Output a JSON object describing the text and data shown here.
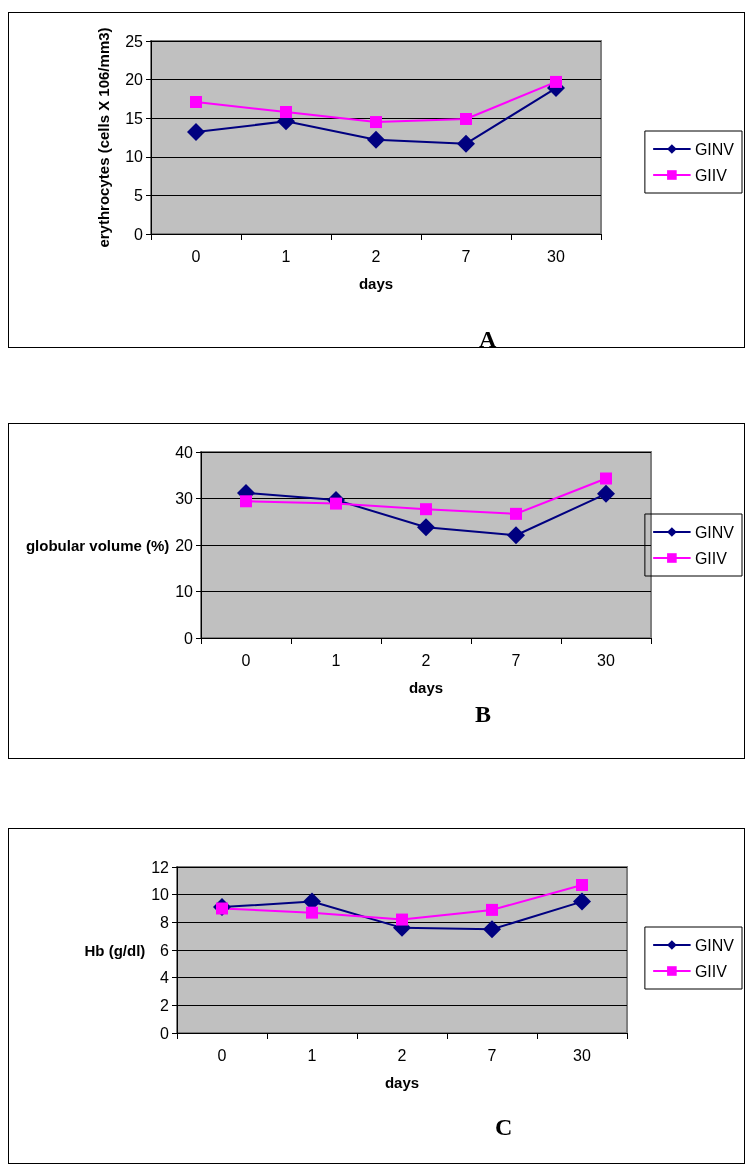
{
  "chart_data": [
    {
      "type": "line",
      "xlabel": "days",
      "ylabel": "erythrocytes (cells X 106/mm3)",
      "categories": [
        "0",
        "1",
        "2",
        "7",
        "30"
      ],
      "ylim": [
        0,
        25
      ],
      "yticks": [
        0,
        5,
        10,
        15,
        20,
        25
      ],
      "grid": "y",
      "legend": "right",
      "annotations": [
        "A"
      ],
      "series": [
        {
          "name": "GINV",
          "color": "#000080",
          "marker": "diamond",
          "values": [
            13.2,
            14.6,
            12.2,
            11.7,
            18.9
          ]
        },
        {
          "name": "GIIV",
          "color": "#ff00ff",
          "marker": "square",
          "values": [
            17.1,
            15.8,
            14.5,
            14.9,
            19.7
          ]
        }
      ]
    },
    {
      "type": "line",
      "xlabel": "days",
      "ylabel": "globular volume (%)",
      "categories": [
        "0",
        "1",
        "2",
        "7",
        "30"
      ],
      "ylim": [
        0,
        40
      ],
      "yticks": [
        0,
        10,
        20,
        30,
        40
      ],
      "grid": "y",
      "legend": "right",
      "annotations": [
        "B"
      ],
      "series": [
        {
          "name": "GINV",
          "color": "#000080",
          "marker": "diamond",
          "values": [
            31.2,
            29.7,
            23.8,
            22.1,
            31.0
          ]
        },
        {
          "name": "GIIV",
          "color": "#ff00ff",
          "marker": "square",
          "values": [
            29.4,
            28.9,
            27.7,
            26.7,
            34.3
          ]
        }
      ]
    },
    {
      "type": "line",
      "xlabel": "days",
      "ylabel": "Hb (g/dl)",
      "categories": [
        "0",
        "1",
        "2",
        "7",
        "30"
      ],
      "ylim": [
        0,
        12
      ],
      "yticks": [
        0,
        2,
        4,
        6,
        8,
        10,
        12
      ],
      "grid": "y",
      "legend": "right",
      "annotations": [
        "C"
      ],
      "series": [
        {
          "name": "GINV",
          "color": "#000080",
          "marker": "diamond",
          "values": [
            9.1,
            9.5,
            7.6,
            7.5,
            9.5
          ]
        },
        {
          "name": "GIIV",
          "color": "#ff00ff",
          "marker": "square",
          "values": [
            9.0,
            8.7,
            8.2,
            8.9,
            10.7
          ]
        }
      ]
    }
  ]
}
